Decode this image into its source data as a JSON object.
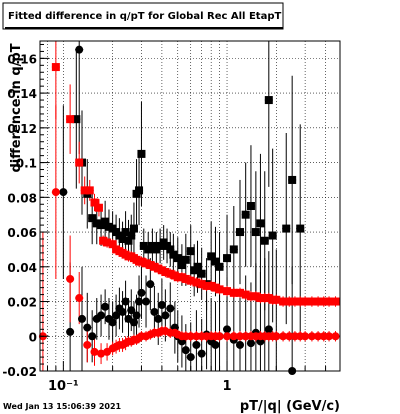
{
  "chart_data": {
    "type": "scatter",
    "title": "Fitted difference in q/pT for Global Rec All EtapT",
    "ylabel": "difference in q/pT",
    "xlabel": "pT/|q| (GeV/c)",
    "x_scale": "log",
    "xlim": [
      0.072,
      4.9
    ],
    "ylim": [
      -0.02,
      0.17
    ],
    "x_ticks": [
      {
        "value": 0.1,
        "label": "10⁻¹"
      },
      {
        "value": 1,
        "label": "1"
      }
    ],
    "y_ticks": [
      -0.02,
      0,
      0.02,
      0.04,
      0.06,
      0.08,
      0.1,
      0.12,
      0.14,
      0.16
    ],
    "y_tick_labels": [
      "-0.02",
      "0",
      "0.02",
      "0.04",
      "0.06",
      "0.08",
      "0.1",
      "0.12",
      "0.14",
      "0.16"
    ],
    "grid": true,
    "series": [
      {
        "color": "#000000",
        "marker": "square",
        "points": [
          [
            0.12,
            0.125,
            0.04
          ],
          [
            0.13,
            0.1,
            0.03
          ],
          [
            0.14,
            0.082,
            0.02
          ],
          [
            0.15,
            0.068,
            0.015
          ],
          [
            0.16,
            0.065,
            0.012
          ],
          [
            0.17,
            0.064,
            0.012
          ],
          [
            0.18,
            0.066,
            0.012
          ],
          [
            0.19,
            0.063,
            0.01
          ],
          [
            0.2,
            0.062,
            0.01
          ],
          [
            0.21,
            0.06,
            0.01
          ],
          [
            0.22,
            0.058,
            0.01
          ],
          [
            0.23,
            0.056,
            0.01
          ],
          [
            0.24,
            0.06,
            0.012
          ],
          [
            0.25,
            0.055,
            0.012
          ],
          [
            0.26,
            0.058,
            0.012
          ],
          [
            0.27,
            0.062,
            0.015
          ],
          [
            0.28,
            0.082,
            0.02
          ],
          [
            0.29,
            0.084,
            0.02
          ],
          [
            0.3,
            0.105,
            0.03
          ],
          [
            0.31,
            0.052,
            0.01
          ],
          [
            0.33,
            0.05,
            0.01
          ],
          [
            0.35,
            0.052,
            0.01
          ],
          [
            0.37,
            0.05,
            0.01
          ],
          [
            0.39,
            0.052,
            0.01
          ],
          [
            0.41,
            0.054,
            0.01
          ],
          [
            0.43,
            0.052,
            0.01
          ],
          [
            0.45,
            0.05,
            0.01
          ],
          [
            0.47,
            0.047,
            0.012
          ],
          [
            0.5,
            0.045,
            0.012
          ],
          [
            0.53,
            0.041,
            0.012
          ],
          [
            0.56,
            0.044,
            0.015
          ],
          [
            0.6,
            0.049,
            0.015
          ],
          [
            0.63,
            0.038,
            0.015
          ],
          [
            0.66,
            0.04,
            0.015
          ],
          [
            0.7,
            0.036,
            0.015
          ],
          [
            0.75,
            0.03,
            0.015
          ],
          [
            0.8,
            0.046,
            0.02
          ],
          [
            0.85,
            0.043,
            0.02
          ],
          [
            0.9,
            0.04,
            0.02
          ],
          [
            1.0,
            0.045,
            0.025
          ],
          [
            1.1,
            0.05,
            0.025
          ],
          [
            1.2,
            0.06,
            0.03
          ],
          [
            1.3,
            0.07,
            0.03
          ],
          [
            1.4,
            0.075,
            0.035
          ],
          [
            1.5,
            0.06,
            0.035
          ],
          [
            1.6,
            0.065,
            0.04
          ],
          [
            1.7,
            0.055,
            0.04
          ],
          [
            1.8,
            0.136,
            0.05
          ],
          [
            1.9,
            0.058,
            0.05
          ],
          [
            2.3,
            0.062,
            0.055
          ],
          [
            2.5,
            0.09,
            0.06
          ],
          [
            2.8,
            0.062,
            0.06
          ]
        ]
      },
      {
        "color": "#000000",
        "marker": "circle",
        "points": [
          [
            0.1,
            0.083,
            0.05
          ],
          [
            0.11,
            0.0025,
            0.04
          ],
          [
            0.125,
            0.165,
            0.06
          ],
          [
            0.13,
            0.01,
            0.03
          ],
          [
            0.14,
            0.005,
            0.02
          ],
          [
            0.15,
            0.0,
            0.015
          ],
          [
            0.16,
            0.01,
            0.012
          ],
          [
            0.17,
            0.012,
            0.012
          ],
          [
            0.18,
            0.017,
            0.01
          ],
          [
            0.19,
            0.01,
            0.012
          ],
          [
            0.2,
            0.008,
            0.012
          ],
          [
            0.21,
            0.012,
            0.012
          ],
          [
            0.22,
            0.016,
            0.012
          ],
          [
            0.23,
            0.014,
            0.012
          ],
          [
            0.24,
            0.02,
            0.012
          ],
          [
            0.25,
            0.01,
            0.012
          ],
          [
            0.26,
            0.015,
            0.012
          ],
          [
            0.27,
            0.008,
            0.012
          ],
          [
            0.28,
            0.012,
            0.012
          ],
          [
            0.29,
            0.02,
            0.015
          ],
          [
            0.3,
            0.025,
            0.015
          ],
          [
            0.32,
            0.02,
            0.015
          ],
          [
            0.34,
            0.03,
            0.015
          ],
          [
            0.36,
            0.014,
            0.015
          ],
          [
            0.38,
            0.01,
            0.015
          ],
          [
            0.4,
            0.018,
            0.015
          ],
          [
            0.42,
            0.012,
            0.015
          ],
          [
            0.45,
            0.016,
            0.015
          ],
          [
            0.48,
            0.005,
            0.015
          ],
          [
            0.5,
            0.0,
            0.015
          ],
          [
            0.53,
            -0.003,
            0.015
          ],
          [
            0.56,
            -0.008,
            0.015
          ],
          [
            0.6,
            -0.012,
            0.02
          ],
          [
            0.65,
            -0.005,
            0.02
          ],
          [
            0.7,
            -0.01,
            0.02
          ],
          [
            0.75,
            0.001,
            0.02
          ],
          [
            0.8,
            -0.003,
            0.025
          ],
          [
            0.85,
            -0.005,
            0.025
          ],
          [
            0.9,
            0.0,
            0.025
          ],
          [
            1.0,
            0.004,
            0.03
          ],
          [
            1.1,
            -0.002,
            0.03
          ],
          [
            1.2,
            -0.005,
            0.03
          ],
          [
            1.3,
            0.0,
            0.035
          ],
          [
            1.4,
            -0.004,
            0.035
          ],
          [
            1.5,
            0.002,
            0.04
          ],
          [
            1.6,
            -0.003,
            0.04
          ],
          [
            1.7,
            0.0,
            0.045
          ],
          [
            1.8,
            0.004,
            0.045
          ],
          [
            2.0,
            0.0,
            0.05
          ],
          [
            2.5,
            -0.02,
            0.06
          ]
        ]
      },
      {
        "color": "#ff0000",
        "marker": "square",
        "points": [
          [
            0.09,
            0.155,
            0.03
          ],
          [
            0.11,
            0.125,
            0.02
          ],
          [
            0.125,
            0.1,
            0.012
          ],
          [
            0.135,
            0.084,
            0.008
          ],
          [
            0.145,
            0.084,
            0.006
          ],
          [
            0.155,
            0.077,
            0.005
          ],
          [
            0.165,
            0.074,
            0.005
          ],
          [
            0.175,
            0.055,
            0.003
          ],
          [
            0.185,
            0.054,
            0.003
          ],
          [
            0.2,
            0.053,
            0.003
          ],
          [
            0.21,
            0.05,
            0.003
          ],
          [
            0.22,
            0.049,
            0.003
          ],
          [
            0.23,
            0.048,
            0.003
          ],
          [
            0.24,
            0.047,
            0.003
          ],
          [
            0.25,
            0.046,
            0.003
          ],
          [
            0.26,
            0.046,
            0.003
          ],
          [
            0.27,
            0.045,
            0.003
          ],
          [
            0.28,
            0.044,
            0.003
          ],
          [
            0.29,
            0.043,
            0.003
          ],
          [
            0.3,
            0.043,
            0.003
          ],
          [
            0.32,
            0.042,
            0.003
          ],
          [
            0.34,
            0.041,
            0.003
          ],
          [
            0.36,
            0.04,
            0.003
          ],
          [
            0.38,
            0.039,
            0.003
          ],
          [
            0.4,
            0.038,
            0.003
          ],
          [
            0.42,
            0.037,
            0.003
          ],
          [
            0.45,
            0.036,
            0.003
          ],
          [
            0.48,
            0.035,
            0.003
          ],
          [
            0.5,
            0.034,
            0.003
          ],
          [
            0.53,
            0.034,
            0.003
          ],
          [
            0.56,
            0.033,
            0.003
          ],
          [
            0.6,
            0.032,
            0.003
          ],
          [
            0.65,
            0.031,
            0.003
          ],
          [
            0.7,
            0.03,
            0.003
          ],
          [
            0.75,
            0.029,
            0.003
          ],
          [
            0.8,
            0.029,
            0.003
          ],
          [
            0.85,
            0.028,
            0.003
          ],
          [
            0.9,
            0.027,
            0.003
          ],
          [
            1.0,
            0.026,
            0.003
          ],
          [
            1.1,
            0.025,
            0.003
          ],
          [
            1.2,
            0.025,
            0.003
          ],
          [
            1.3,
            0.024,
            0.003
          ],
          [
            1.4,
            0.023,
            0.003
          ],
          [
            1.5,
            0.023,
            0.003
          ],
          [
            1.6,
            0.022,
            0.003
          ],
          [
            1.7,
            0.022,
            0.003
          ],
          [
            1.8,
            0.022,
            0.003
          ],
          [
            1.9,
            0.021,
            0.003
          ],
          [
            2.0,
            0.021,
            0.003
          ],
          [
            2.2,
            0.02,
            0.003
          ],
          [
            2.4,
            0.02,
            0.003
          ],
          [
            2.6,
            0.02,
            0.003
          ],
          [
            2.8,
            0.02,
            0.003
          ],
          [
            3.0,
            0.02,
            0.003
          ],
          [
            3.3,
            0.02,
            0.003
          ],
          [
            3.6,
            0.02,
            0.003
          ],
          [
            3.9,
            0.02,
            0.003
          ],
          [
            4.2,
            0.02,
            0.003
          ],
          [
            4.6,
            0.02,
            0.003
          ]
        ]
      },
      {
        "color": "#ff0000",
        "marker": "circle",
        "points": [
          [
            0.075,
            0.0,
            0.06
          ],
          [
            0.09,
            0.083,
            0.05
          ],
          [
            0.11,
            0.033,
            0.025
          ],
          [
            0.125,
            0.022,
            0.015
          ],
          [
            0.14,
            -0.005,
            0.01
          ],
          [
            0.155,
            -0.009,
            0.008
          ],
          [
            0.17,
            -0.01,
            0.006
          ],
          [
            0.185,
            -0.009,
            0.005
          ],
          [
            0.2,
            -0.007,
            0.004
          ],
          [
            0.21,
            -0.006,
            0.004
          ],
          [
            0.22,
            -0.005,
            0.004
          ],
          [
            0.23,
            -0.005,
            0.004
          ],
          [
            0.24,
            -0.004,
            0.004
          ],
          [
            0.25,
            -0.003,
            0.003
          ],
          [
            0.26,
            -0.003,
            0.003
          ],
          [
            0.27,
            -0.002,
            0.003
          ],
          [
            0.28,
            -0.002,
            0.003
          ],
          [
            0.29,
            -0.001,
            0.003
          ],
          [
            0.3,
            0.0,
            0.003
          ],
          [
            0.32,
            0.0,
            0.003
          ],
          [
            0.34,
            0.001,
            0.003
          ],
          [
            0.36,
            0.002,
            0.003
          ],
          [
            0.38,
            0.002,
            0.003
          ],
          [
            0.4,
            0.003,
            0.003
          ],
          [
            0.42,
            0.003,
            0.003
          ],
          [
            0.45,
            0.002,
            0.003
          ],
          [
            0.48,
            0.002,
            0.003
          ],
          [
            0.5,
            0.001,
            0.003
          ],
          [
            0.53,
            0.0,
            0.003
          ],
          [
            0.56,
            0.0,
            0.003
          ],
          [
            0.6,
            0.0,
            0.003
          ],
          [
            0.65,
            0.0,
            0.003
          ],
          [
            0.7,
            0.0,
            0.003
          ],
          [
            0.75,
            0.0,
            0.003
          ],
          [
            0.8,
            0.0,
            0.003
          ],
          [
            0.85,
            0.0,
            0.003
          ],
          [
            0.9,
            0.0,
            0.003
          ],
          [
            1.0,
            0.0,
            0.003
          ],
          [
            1.1,
            0.0,
            0.003
          ],
          [
            1.2,
            0.0,
            0.003
          ],
          [
            1.3,
            0.0,
            0.003
          ],
          [
            1.4,
            0.0,
            0.003
          ],
          [
            1.5,
            0.0,
            0.003
          ],
          [
            1.6,
            0.0,
            0.003
          ],
          [
            1.7,
            0.0,
            0.003
          ],
          [
            1.8,
            0.0,
            0.003
          ],
          [
            1.9,
            0.0,
            0.003
          ],
          [
            2.0,
            0.0,
            0.003
          ],
          [
            2.2,
            0.0,
            0.003
          ],
          [
            2.4,
            0.0,
            0.003
          ],
          [
            2.6,
            0.0,
            0.003
          ],
          [
            2.8,
            0.0,
            0.003
          ],
          [
            3.0,
            0.0,
            0.003
          ],
          [
            3.3,
            0.0,
            0.003
          ],
          [
            3.6,
            0.0,
            0.003
          ],
          [
            3.9,
            0.0,
            0.003
          ],
          [
            4.2,
            0.0,
            0.003
          ],
          [
            4.6,
            0.0,
            0.003
          ]
        ]
      }
    ]
  },
  "footer": {
    "timestamp": "Wed Jan 13 15:06:39 2021"
  }
}
